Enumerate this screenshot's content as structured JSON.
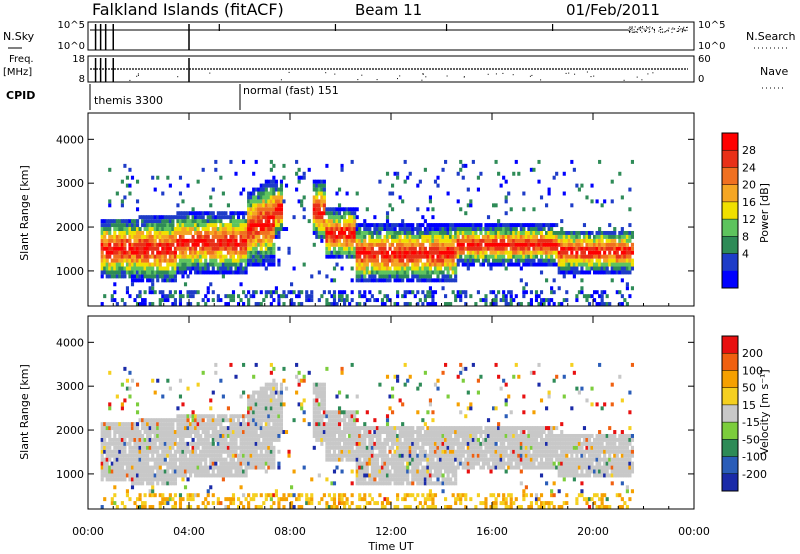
{
  "header": {
    "station": "Falkland Islands (fitACF)",
    "beam": "Beam 11",
    "date": "01/Feb/2011"
  },
  "strips": {
    "nsky_label": "N.Sky",
    "nsky_ticks": [
      "10^5",
      "10^0"
    ],
    "nsearch_label": "N.Search",
    "nsearch_ticks": [
      "10^5",
      "10^0"
    ],
    "freq_label_top": "Freq.",
    "freq_label_bottom": "[MHz]",
    "freq_ticks": [
      "18",
      "8"
    ],
    "nave_label": "Nave",
    "nave_ticks": [
      "60",
      "0"
    ],
    "cpid_label": "CPID",
    "cpid_modes": [
      "themis 3300",
      "normal (fast) 151"
    ]
  },
  "chart_data": [
    {
      "type": "heatmap",
      "title": "",
      "xlabel": "Time UT",
      "ylabel": "Slant Range [km]",
      "x_ticks": [
        "00:00",
        "04:00",
        "08:00",
        "12:00",
        "16:00",
        "20:00",
        "00:00"
      ],
      "y_ticks": [
        "1000",
        "2000",
        "3000",
        "4000"
      ],
      "colorbar_label": "Power [dB]",
      "colorbar_ticks": [
        "28",
        "24",
        "20",
        "16",
        "12",
        "8",
        "4"
      ],
      "colorbar_colors": [
        "#0000ff",
        "#1e3cc8",
        "#2e8b57",
        "#5ec45e",
        "#f0e000",
        "#f5a623",
        "#f07020",
        "#e83018",
        "#ff0000"
      ]
    },
    {
      "type": "heatmap",
      "title": "",
      "xlabel": "Time UT",
      "ylabel": "Slant Range [km]",
      "x_ticks": [
        "00:00",
        "04:00",
        "08:00",
        "12:00",
        "16:00",
        "20:00",
        "00:00"
      ],
      "y_ticks": [
        "1000",
        "2000",
        "3000",
        "4000"
      ],
      "colorbar_label": "Velocity [m s⁻¹]",
      "colorbar_ticks": [
        "200",
        "100",
        "50",
        "15",
        "-15",
        "-50",
        "-100",
        "-200"
      ],
      "colorbar_colors": [
        "#1a2aa8",
        "#2a5db8",
        "#2e8b57",
        "#7ccd3c",
        "#c8c8c8",
        "#f5d020",
        "#f5a000",
        "#f06010",
        "#e81010"
      ]
    }
  ]
}
